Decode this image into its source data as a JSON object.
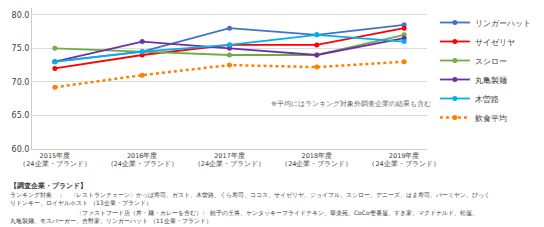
{
  "chart_data": {
    "type": "line",
    "categories": [
      "2015年度\n（24企業・ブランド）",
      "2016年度\n（24企業・ブランド）",
      "2017年度\n（24企業・ブランド）",
      "2018年度\n（24企業・ブランド）",
      "2019年度\n（24企業・ブランド）"
    ],
    "series": [
      {
        "name": "リンガーハット",
        "color": "#4472C4",
        "values": [
          73.0,
          74.5,
          78.0,
          77.0,
          78.5
        ],
        "line_style": "solid",
        "marker": "circle"
      },
      {
        "name": "サイゼリヤ",
        "color": "#FF0000",
        "values": [
          72.0,
          74.0,
          75.5,
          75.5,
          78.0
        ],
        "line_style": "solid",
        "marker": "circle"
      },
      {
        "name": "スシロー",
        "color": "#70AD47",
        "values": [
          75.0,
          74.5,
          74.0,
          74.0,
          77.0
        ],
        "line_style": "solid",
        "marker": "circle"
      },
      {
        "name": "丸亀製麺",
        "color": "#7030A0",
        "values": [
          73.0,
          76.0,
          75.0,
          74.0,
          76.5
        ],
        "line_style": "solid",
        "marker": "circle"
      },
      {
        "name": "木曽路",
        "color": "#00B0F0",
        "values": [
          73.0,
          74.5,
          75.5,
          77.0,
          76.0
        ],
        "line_style": "solid",
        "marker": "circle"
      },
      {
        "name": "飲食平均",
        "color": "#FF8000",
        "values": [
          69.2,
          71.0,
          72.5,
          72.2,
          73.0
        ],
        "line_style": "dotted",
        "marker": "circle"
      }
    ],
    "ylim": [
      60.0,
      81.0
    ],
    "yticks": [
      {
        "value": 60.0,
        "label": "60.0"
      },
      {
        "value": 65.0,
        "label": "65.0"
      },
      {
        "value": 70.0,
        "label": "70.0"
      },
      {
        "value": 75.0,
        "label": "75.0"
      },
      {
        "value": 80.0,
        "label": "80.0"
      }
    ],
    "grid": true,
    "legend": "right",
    "annotations": [
      "※平均にはランキング対象外調査企業の結果も含む",
      "【調査企業・ブランド】",
      "ランキング対象　：　〈レストランチェーン〉かっぱ寿司、ガスト、木曽路、くら寿司、ココス、サイゼリヤ、ジョイフル、スシロー、デニーズ、はま寿司、バーミヤン、びっくりドンキー、ロイヤルホスト （13企業・ブランド）",
      "　　　　　　　　　　　〈ファストフード店（丼・麺・カレーを含む）〉 餃子の王将、ケンタッキーフライドチキン、華楽苑、CoCo壱番屋、すき家、マクドナルド、松屋、丸亀製麺、モスバーガー、吉野家、リンガーハット （11企業・ブランド）"
    ]
  }
}
